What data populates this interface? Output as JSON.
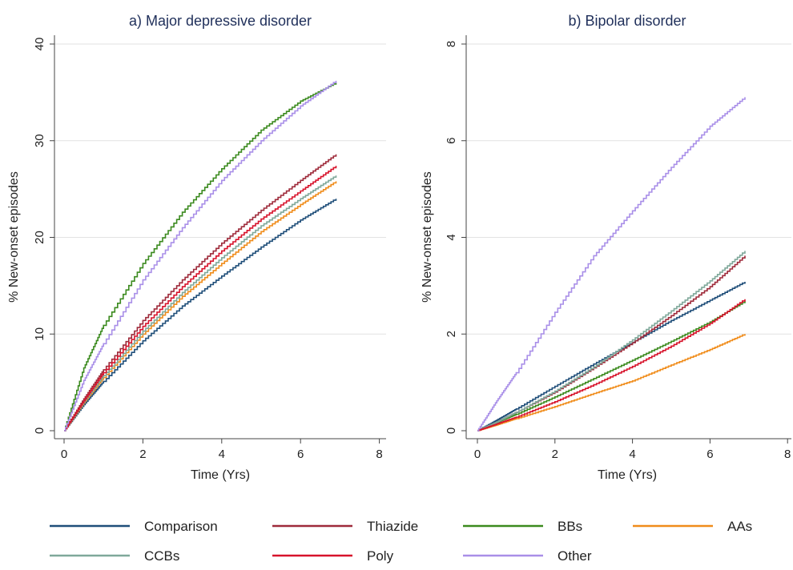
{
  "chart_data": [
    {
      "type": "line",
      "title": "a) Major depressive disorder",
      "xlabel": "Time (Yrs)",
      "ylabel": "% New-onset episodes",
      "xlim": [
        0,
        8
      ],
      "ylim": [
        0,
        40
      ],
      "xticks": [
        "0",
        "2",
        "4",
        "6",
        "8"
      ],
      "yticks": [
        "0",
        "10",
        "20",
        "30",
        "40"
      ],
      "grid": true,
      "x": [
        0,
        0.5,
        1,
        2,
        3,
        4,
        5,
        6,
        6.9
      ],
      "series": [
        {
          "name": "Comparison",
          "values": [
            0,
            2.7,
            5.1,
            9.3,
            12.9,
            16.0,
            19.0,
            21.8,
            24.0
          ]
        },
        {
          "name": "Thiazide",
          "values": [
            0,
            3.3,
            6.3,
            11.4,
            15.6,
            19.4,
            22.8,
            25.9,
            28.6
          ]
        },
        {
          "name": "BBs",
          "values": [
            0,
            6.5,
            10.9,
            17.3,
            22.6,
            27.1,
            31.1,
            34.1,
            36.0
          ]
        },
        {
          "name": "AAs",
          "values": [
            0,
            2.9,
            5.5,
            10.0,
            13.9,
            17.3,
            20.6,
            23.4,
            25.8
          ]
        },
        {
          "name": "CCBs",
          "values": [
            0,
            3.0,
            5.7,
            10.3,
            14.3,
            17.9,
            21.2,
            24.0,
            26.4
          ]
        },
        {
          "name": "Poly",
          "values": [
            0,
            3.1,
            6.0,
            10.8,
            14.9,
            18.6,
            21.9,
            24.8,
            27.4
          ]
        },
        {
          "name": "Other",
          "values": [
            0,
            5.2,
            9.0,
            15.6,
            21.0,
            25.9,
            30.0,
            33.6,
            36.2
          ]
        }
      ]
    },
    {
      "type": "line",
      "title": "b) Bipolar disorder",
      "xlabel": "Time (Yrs)",
      "ylabel": "% New-onset episodes",
      "xlim": [
        0,
        8
      ],
      "ylim": [
        0,
        8
      ],
      "xticks": [
        "0",
        "2",
        "4",
        "6",
        "8"
      ],
      "yticks": [
        "0",
        "2",
        "4",
        "6",
        "8"
      ],
      "grid": true,
      "x": [
        0,
        0.5,
        1,
        2,
        3,
        4,
        5,
        6,
        6.9
      ],
      "series": [
        {
          "name": "Comparison",
          "values": [
            0,
            0.22,
            0.45,
            0.92,
            1.38,
            1.83,
            2.28,
            2.7,
            3.08
          ]
        },
        {
          "name": "Thiazide",
          "values": [
            0,
            0.18,
            0.38,
            0.8,
            1.3,
            1.82,
            2.38,
            2.98,
            3.62
          ]
        },
        {
          "name": "BBs",
          "values": [
            0,
            0.17,
            0.34,
            0.7,
            1.08,
            1.46,
            1.85,
            2.25,
            2.68
          ]
        },
        {
          "name": "AAs",
          "values": [
            0,
            0.12,
            0.25,
            0.5,
            0.77,
            1.03,
            1.36,
            1.68,
            2.0
          ]
        },
        {
          "name": "CCBs",
          "values": [
            0,
            0.18,
            0.38,
            0.82,
            1.32,
            1.88,
            2.48,
            3.1,
            3.72
          ]
        },
        {
          "name": "Poly",
          "values": [
            0,
            0.14,
            0.28,
            0.6,
            0.95,
            1.33,
            1.75,
            2.22,
            2.72
          ]
        },
        {
          "name": "Other",
          "values": [
            0,
            0.62,
            1.2,
            2.45,
            3.62,
            4.55,
            5.45,
            6.3,
            6.9
          ]
        }
      ]
    }
  ],
  "legend": {
    "placement": "bottom",
    "items": [
      {
        "name": "Comparison",
        "color": "#1f4e79"
      },
      {
        "name": "Thiazide",
        "color": "#9e2a3a"
      },
      {
        "name": "BBs",
        "color": "#3b8a1e"
      },
      {
        "name": "AAs",
        "color": "#f08c1a"
      },
      {
        "name": "CCBs",
        "color": "#7fa89a"
      },
      {
        "name": "Poly",
        "color": "#d7132b"
      },
      {
        "name": "Other",
        "color": "#a98fe8"
      }
    ]
  }
}
